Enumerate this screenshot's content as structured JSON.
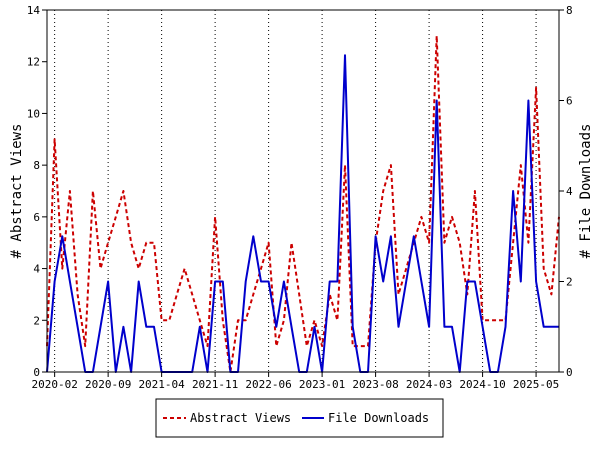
{
  "chart_data": {
    "type": "line",
    "ylabel": "# Abstract Views",
    "y2label": "# File Downloads",
    "ylim": [
      0,
      14
    ],
    "y2lim": [
      0,
      8
    ],
    "yticks": [
      0,
      2,
      4,
      6,
      8,
      10,
      12,
      14
    ],
    "y2ticks": [
      0,
      2,
      4,
      6,
      8
    ],
    "xlim": [
      "2020-01",
      "2025-08"
    ],
    "xticks": [
      "2020-02",
      "2020-09",
      "2021-04",
      "2021-11",
      "2022-06",
      "2023-01",
      "2023-08",
      "2024-03",
      "2024-10",
      "2025-05"
    ],
    "grid": "vertical dotted",
    "legend_position": "bottom",
    "series": [
      {
        "name": "Abstract Views",
        "axis": "left",
        "color": "#cc0000",
        "style": "dashed",
        "x": [
          "2020-01",
          "2020-02",
          "2020-03",
          "2020-04",
          "2020-05",
          "2020-06",
          "2020-07",
          "2020-08",
          "2020-09",
          "2020-10",
          "2020-11",
          "2020-12",
          "2021-01",
          "2021-02",
          "2021-03",
          "2021-04",
          "2021-05",
          "2021-06",
          "2021-07",
          "2021-08",
          "2021-09",
          "2021-10",
          "2021-11",
          "2021-12",
          "2022-01",
          "2022-02",
          "2022-03",
          "2022-04",
          "2022-05",
          "2022-06",
          "2022-07",
          "2022-08",
          "2022-09",
          "2022-10",
          "2022-11",
          "2022-12",
          "2023-01",
          "2023-02",
          "2023-03",
          "2023-04",
          "2023-05",
          "2023-06",
          "2023-07",
          "2023-08",
          "2023-09",
          "2023-10",
          "2023-11",
          "2023-12",
          "2024-01",
          "2024-02",
          "2024-03",
          "2024-04",
          "2024-05",
          "2024-06",
          "2024-07",
          "2024-08",
          "2024-09",
          "2024-10",
          "2024-11",
          "2024-12",
          "2025-01",
          "2025-02",
          "2025-03",
          "2025-04",
          "2025-05",
          "2025-06",
          "2025-07",
          "2025-08"
        ],
        "values": [
          1,
          9,
          4,
          7,
          3,
          1,
          7,
          4,
          5,
          6,
          7,
          5,
          4,
          5,
          5,
          2,
          2,
          3,
          4,
          3,
          2,
          1,
          6,
          2,
          0,
          2,
          2,
          3,
          4,
          5,
          1,
          2,
          5,
          3,
          1,
          2,
          1,
          3,
          2,
          8,
          1,
          1,
          1,
          5,
          7,
          8,
          3,
          4,
          5,
          6,
          5,
          13,
          5,
          6,
          5,
          3,
          7,
          2,
          2,
          2,
          2,
          5,
          8,
          5,
          11,
          4,
          3,
          6
        ]
      },
      {
        "name": "File Downloads",
        "axis": "right",
        "color": "#0000cc",
        "style": "solid",
        "x": [
          "2020-01",
          "2020-02",
          "2020-03",
          "2020-04",
          "2020-05",
          "2020-06",
          "2020-07",
          "2020-08",
          "2020-09",
          "2020-10",
          "2020-11",
          "2020-12",
          "2021-01",
          "2021-02",
          "2021-03",
          "2021-04",
          "2021-05",
          "2021-06",
          "2021-07",
          "2021-08",
          "2021-09",
          "2021-10",
          "2021-11",
          "2021-12",
          "2022-01",
          "2022-02",
          "2022-03",
          "2022-04",
          "2022-05",
          "2022-06",
          "2022-07",
          "2022-08",
          "2022-09",
          "2022-10",
          "2022-11",
          "2022-12",
          "2023-01",
          "2023-02",
          "2023-03",
          "2023-04",
          "2023-05",
          "2023-06",
          "2023-07",
          "2023-08",
          "2023-09",
          "2023-10",
          "2023-11",
          "2023-12",
          "2024-01",
          "2024-02",
          "2024-03",
          "2024-04",
          "2024-05",
          "2024-06",
          "2024-07",
          "2024-08",
          "2024-09",
          "2024-10",
          "2024-11",
          "2024-12",
          "2025-01",
          "2025-02",
          "2025-03",
          "2025-04",
          "2025-05",
          "2025-06",
          "2025-07",
          "2025-08"
        ],
        "values": [
          0,
          2,
          3,
          2,
          1,
          0,
          0,
          1,
          2,
          0,
          1,
          0,
          2,
          1,
          1,
          0,
          0,
          0,
          0,
          0,
          1,
          0,
          2,
          2,
          0,
          0,
          2,
          3,
          2,
          2,
          1,
          2,
          1,
          0,
          0,
          1,
          0,
          2,
          2,
          7,
          1,
          0,
          0,
          3,
          2,
          3,
          1,
          2,
          3,
          2,
          1,
          6,
          1,
          1,
          0,
          2,
          2,
          1,
          0,
          0,
          1,
          4,
          2,
          6,
          2,
          1,
          1,
          1
        ]
      }
    ]
  }
}
